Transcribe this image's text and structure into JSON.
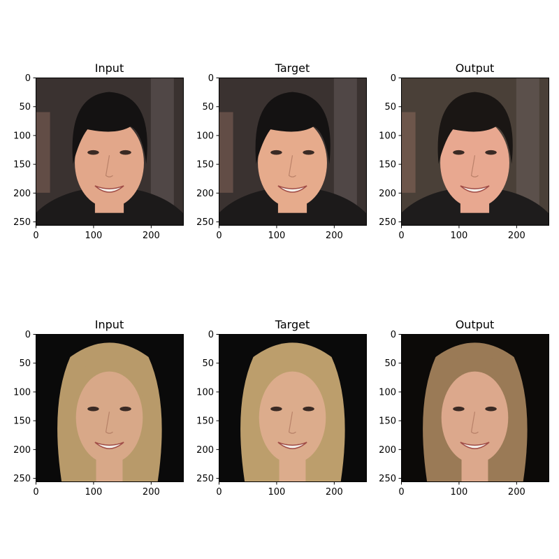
{
  "chart_data": {
    "type": "image-grid",
    "subplots": [
      {
        "title": "Input",
        "xticks": [
          0,
          100,
          200
        ],
        "yticks": [
          0,
          50,
          100,
          150,
          200,
          250
        ],
        "xlim": [
          0,
          256
        ],
        "ylim": [
          256,
          0
        ],
        "image": {
          "background": "#3a3230",
          "hair": "#141212",
          "skin": "#e2a78a",
          "clothing": "#1c1a1a",
          "content": "man with black hair smiling"
        }
      },
      {
        "title": "Target",
        "xticks": [
          0,
          100,
          200
        ],
        "yticks": [
          0,
          50,
          100,
          150,
          200,
          250
        ],
        "xlim": [
          0,
          256
        ],
        "ylim": [
          256,
          0
        ],
        "image": {
          "background": "#3a3230",
          "hair": "#141212",
          "skin": "#e6ab8c",
          "clothing": "#1c1a1a",
          "content": "man with black hair smiling"
        }
      },
      {
        "title": "Output",
        "xticks": [
          0,
          100,
          200
        ],
        "yticks": [
          0,
          50,
          100,
          150,
          200,
          250
        ],
        "xlim": [
          0,
          256
        ],
        "ylim": [
          256,
          0
        ],
        "image": {
          "background": "#4a4038",
          "hair": "#1a1614",
          "skin": "#e8a890",
          "clothing": "#1e1c1c",
          "content": "man with black hair smiling, blurred background"
        }
      },
      {
        "title": "Input",
        "xticks": [
          0,
          100,
          200
        ],
        "yticks": [
          0,
          50,
          100,
          150,
          200,
          250
        ],
        "xlim": [
          0,
          256
        ],
        "ylim": [
          256,
          0
        ],
        "image": {
          "background": "#0a0a0a",
          "hair": "#b89a6a",
          "skin": "#d8a888",
          "clothing": "#0a0a0a",
          "content": "woman with long blonde hair smiling"
        }
      },
      {
        "title": "Target",
        "xticks": [
          0,
          100,
          200
        ],
        "yticks": [
          0,
          50,
          100,
          150,
          200,
          250
        ],
        "xlim": [
          0,
          256
        ],
        "ylim": [
          256,
          0
        ],
        "image": {
          "background": "#0a0a0a",
          "hair": "#bc9e6c",
          "skin": "#dcac8c",
          "clothing": "#0a0a0a",
          "content": "woman with long blonde hair smiling"
        }
      },
      {
        "title": "Output",
        "xticks": [
          0,
          100,
          200
        ],
        "yticks": [
          0,
          50,
          100,
          150,
          200,
          250
        ],
        "xlim": [
          0,
          256
        ],
        "ylim": [
          256,
          0
        ],
        "image": {
          "background": "#0c0a08",
          "hair": "#9a7a56",
          "skin": "#dca88c",
          "clothing": "#0c0a08",
          "content": "woman with long light-brown hair smiling"
        }
      }
    ]
  }
}
